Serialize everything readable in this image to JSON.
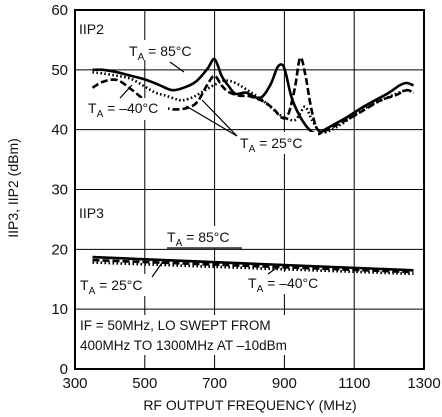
{
  "chart_data": [
    {
      "id": "iip2",
      "type": "line",
      "panel_label": "IIP2",
      "series": [
        {
          "name": "85°C",
          "style": "solid",
          "x": [
            350,
            380,
            420,
            460,
            500,
            540,
            580,
            620,
            650,
            680,
            700,
            720,
            740,
            760,
            790,
            830,
            860,
            880,
            895,
            905,
            920,
            940,
            960,
            980,
            1000,
            1010,
            1040,
            1080,
            1120,
            1160,
            1200,
            1230,
            1250,
            1270
          ],
          "y": [
            50,
            50,
            49.6,
            49,
            48.4,
            47.5,
            46.6,
            47.2,
            48.2,
            50.2,
            51.8,
            49,
            47.3,
            46,
            46.2,
            45.3,
            47.5,
            50.4,
            50.8,
            49.2,
            45.5,
            42.7,
            40.8,
            39.6,
            39.3,
            39.8,
            40.8,
            42.1,
            43.6,
            44.9,
            46.2,
            47.4,
            47.8,
            47.4
          ]
        },
        {
          "name": "25°C",
          "style": "dashed",
          "x": [
            350,
            380,
            420,
            460,
            500,
            540,
            580,
            620,
            650,
            680,
            700,
            720,
            740,
            770,
            800,
            840,
            870,
            890,
            910,
            930,
            945,
            960,
            975,
            990,
            1005,
            1020,
            1060,
            1100,
            1140,
            1180,
            1220,
            1250,
            1270
          ],
          "y": [
            47,
            48,
            48.3,
            46.8,
            45,
            44,
            43.4,
            43.6,
            44.6,
            47.6,
            49,
            47.4,
            46.3,
            45.7,
            45.6,
            44.7,
            43.4,
            42.1,
            42.4,
            47,
            52,
            49.2,
            44.1,
            40.6,
            39.6,
            39.9,
            41.1,
            42.3,
            43.7,
            45,
            45.8,
            46.6,
            46.2
          ]
        },
        {
          "name": "–40°C",
          "style": "dotted",
          "x": [
            350,
            380,
            420,
            460,
            500,
            530,
            560,
            590,
            610,
            640,
            670,
            700,
            730,
            760,
            800,
            840,
            880,
            905,
            930,
            945,
            960,
            980,
            1000,
            1020,
            1060,
            1100,
            1140,
            1180,
            1220,
            1250,
            1270
          ],
          "y": [
            49.6,
            49.4,
            49,
            48.5,
            47.2,
            46.2,
            45.7,
            45.1,
            44.9,
            45.5,
            46.5,
            47.5,
            48.2,
            47.8,
            46.4,
            44.8,
            42.8,
            41.9,
            41.6,
            42.7,
            43.8,
            41.5,
            39.8,
            39.6,
            40.8,
            42.4,
            43.9,
            45,
            46,
            46.6,
            46.2
          ]
        }
      ],
      "labels": [
        {
          "text": "T",
          "sub": "A",
          "rest": " = 85°C"
        },
        {
          "text": "T",
          "sub": "A",
          "rest": " = –40°C"
        },
        {
          "text": "T",
          "sub": "A",
          "rest": " = 25°C"
        }
      ]
    },
    {
      "id": "iip3",
      "type": "line",
      "panel_label": "IIP3",
      "series": [
        {
          "name": "85°C",
          "style": "solid",
          "x": [
            350,
            1270
          ],
          "y": [
            18.7,
            16.5
          ]
        },
        {
          "name": "25°C",
          "style": "dashed",
          "x": [
            350,
            1270
          ],
          "y": [
            18.2,
            16.2
          ]
        },
        {
          "name": "–40°C",
          "style": "dotted",
          "x": [
            350,
            1270
          ],
          "y": [
            17.8,
            15.9
          ]
        }
      ],
      "labels": [
        {
          "text": "T",
          "sub": "A",
          "rest": " = 85°C"
        },
        {
          "text": "T",
          "sub": "A",
          "rest": " = 25°C"
        },
        {
          "text": "T",
          "sub": "A",
          "rest": " = –40°C"
        }
      ]
    }
  ],
  "axes": {
    "xlabel": "RF OUTPUT FREQUENCY (MHz)",
    "ylabel": "IIP3, IIP2 (dBm)",
    "xlim": [
      300,
      1300
    ],
    "ylim": [
      0,
      60
    ],
    "xticks": [
      300,
      500,
      700,
      900,
      1100,
      1300
    ],
    "yticks": [
      0,
      10,
      20,
      30,
      40,
      50,
      60
    ],
    "grid": true
  },
  "note": {
    "line1": "IF = 50MHz, LO SWEPT FROM",
    "line2": "400MHz TO 1300MHz AT –10dBm"
  }
}
